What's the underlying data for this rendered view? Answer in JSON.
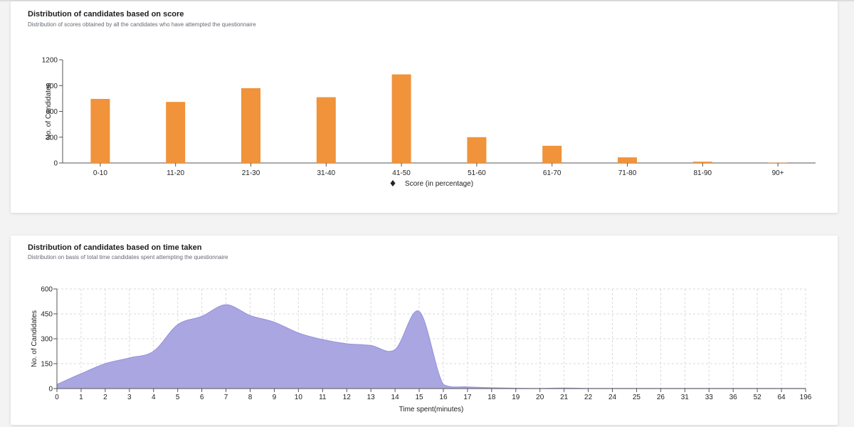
{
  "colors": {
    "bar": "#f0933a",
    "area_fill": "#aaa6e2",
    "area_stroke": "#9591da",
    "grid": "#d9d9d9",
    "axis": "#555555"
  },
  "score_card": {
    "title": "Distribution of candidates based on score",
    "subtitle": "Distribution of scores obtained by all the candidates who have attempted the questionnaire"
  },
  "time_card": {
    "title": "Distribution of candidates based on time taken",
    "subtitle": "Distribution on basis of total time candidates spent attempting the questionnaire"
  },
  "chart_data": [
    {
      "type": "bar",
      "title": "Distribution of candidates based on score",
      "categories": [
        "0-10",
        "11-20",
        "21-30",
        "31-40",
        "41-50",
        "51-60",
        "61-70",
        "71-80",
        "81-90",
        "90+"
      ],
      "values": [
        745,
        710,
        870,
        765,
        1030,
        300,
        200,
        65,
        15,
        3
      ],
      "xlabel": "Score (in percentage)",
      "xlabel_icon": "diamond-icon",
      "ylabel": "No. of Candidates",
      "ylim": [
        0,
        1200
      ],
      "yticks": [
        0,
        300,
        600,
        900,
        1200
      ],
      "grid": false
    },
    {
      "type": "area",
      "title": "Distribution of candidates based on time taken",
      "categories": [
        "0",
        "1",
        "2",
        "3",
        "4",
        "5",
        "6",
        "7",
        "8",
        "9",
        "10",
        "11",
        "12",
        "13",
        "14",
        "15",
        "16",
        "17",
        "18",
        "19",
        "20",
        "21",
        "22",
        "24",
        "25",
        "26",
        "31",
        "33",
        "36",
        "52",
        "64",
        "196"
      ],
      "values": [
        25,
        90,
        150,
        185,
        225,
        385,
        435,
        505,
        440,
        400,
        335,
        295,
        270,
        260,
        235,
        465,
        25,
        10,
        5,
        2,
        1,
        3,
        1,
        1,
        1,
        1,
        1,
        1,
        1,
        1,
        1,
        1
      ],
      "xlabel": "Time spent(minutes)",
      "ylabel": "No. of Candidates",
      "ylim": [
        0,
        600
      ],
      "yticks": [
        0,
        150,
        300,
        450,
        600
      ],
      "grid": true
    }
  ]
}
